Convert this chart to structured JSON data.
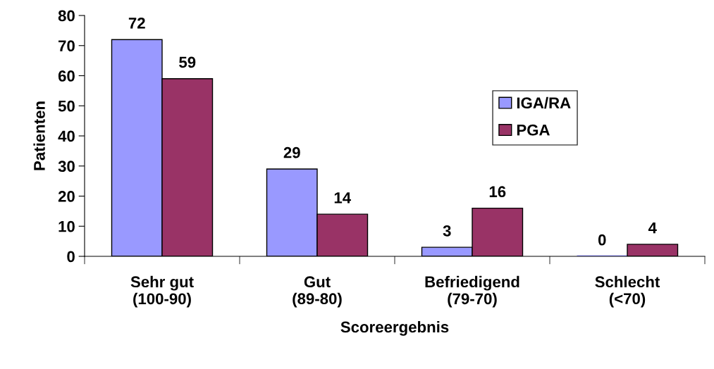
{
  "chart_data": {
    "type": "bar",
    "categories": [
      "Sehr gut\n(100-90)",
      "Gut\n(89-80)",
      "Befriedigend\n(79-70)",
      "Schlecht\n(<70)"
    ],
    "series": [
      {
        "name": "IGA/RA",
        "color": "#9999ff",
        "values": [
          72,
          29,
          3,
          0
        ]
      },
      {
        "name": "PGA",
        "color": "#993366",
        "values": [
          59,
          14,
          16,
          4
        ]
      }
    ],
    "xlabel": "Scoreergebnis",
    "ylabel": "Patienten",
    "ylim": [
      0,
      80
    ],
    "yticks": [
      0,
      10,
      20,
      30,
      40,
      50,
      60,
      70,
      80
    ],
    "data_labels": true,
    "legend": "right",
    "grid": false
  }
}
